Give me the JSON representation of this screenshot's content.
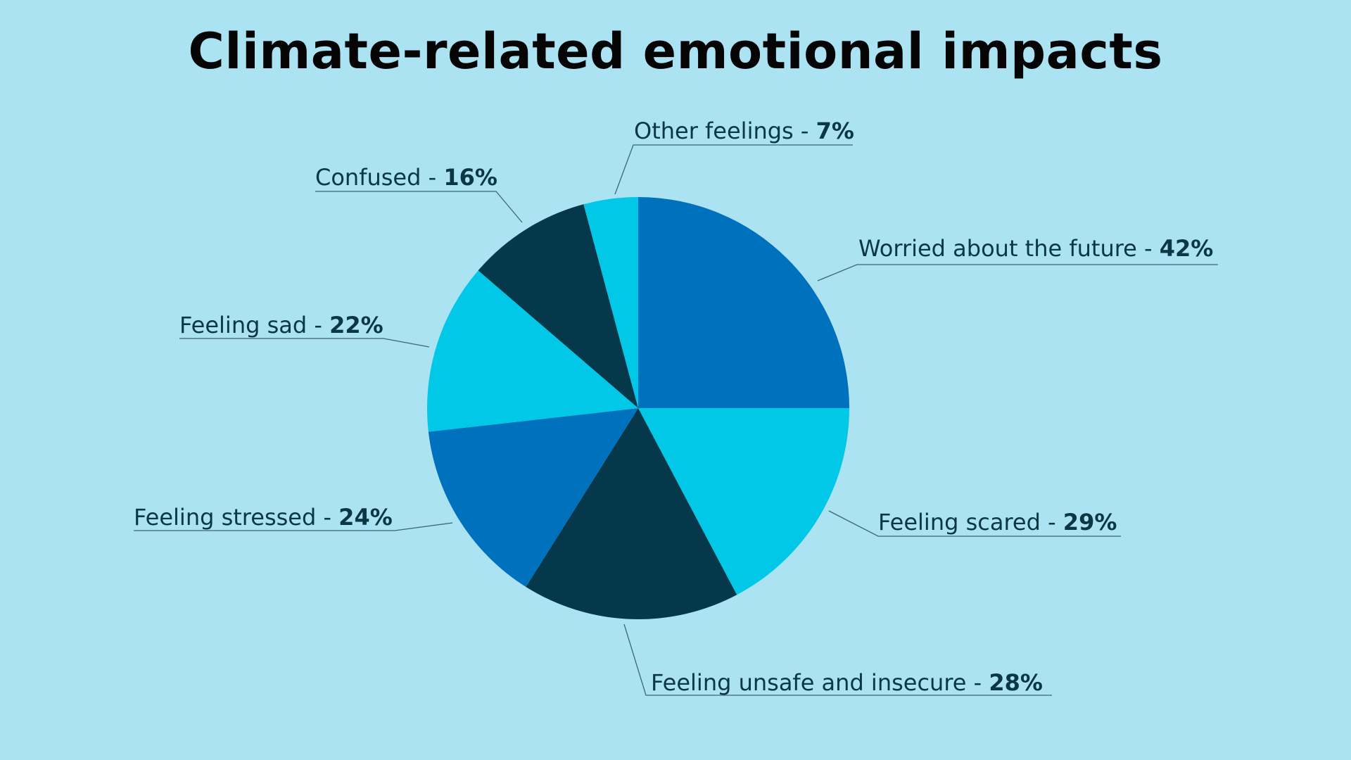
{
  "chart_data": {
    "type": "pie",
    "title": "Climate-related emotional impacts",
    "slices": [
      {
        "label": "Worried about the future",
        "value": 42,
        "display": "42%",
        "color": "#0071bc"
      },
      {
        "label": "Feeling scared",
        "value": 29,
        "display": "29%",
        "color": "#00c8e6"
      },
      {
        "label": "Feeling unsafe and insecure",
        "value": 28,
        "display": "28%",
        "color": "#04384a"
      },
      {
        "label": "Feeling stressed",
        "value": 24,
        "display": "24%",
        "color": "#0071bc"
      },
      {
        "label": "Feeling sad",
        "value": 22,
        "display": "22%",
        "color": "#00c8e6"
      },
      {
        "label": "Confused",
        "value": 16,
        "display": "16%",
        "color": "#04384a"
      },
      {
        "label": "Other feelings",
        "value": 7,
        "display": "7%",
        "color": "#00c8e6"
      }
    ],
    "start_angle": "top",
    "direction": "clockwise",
    "legend": "none"
  }
}
